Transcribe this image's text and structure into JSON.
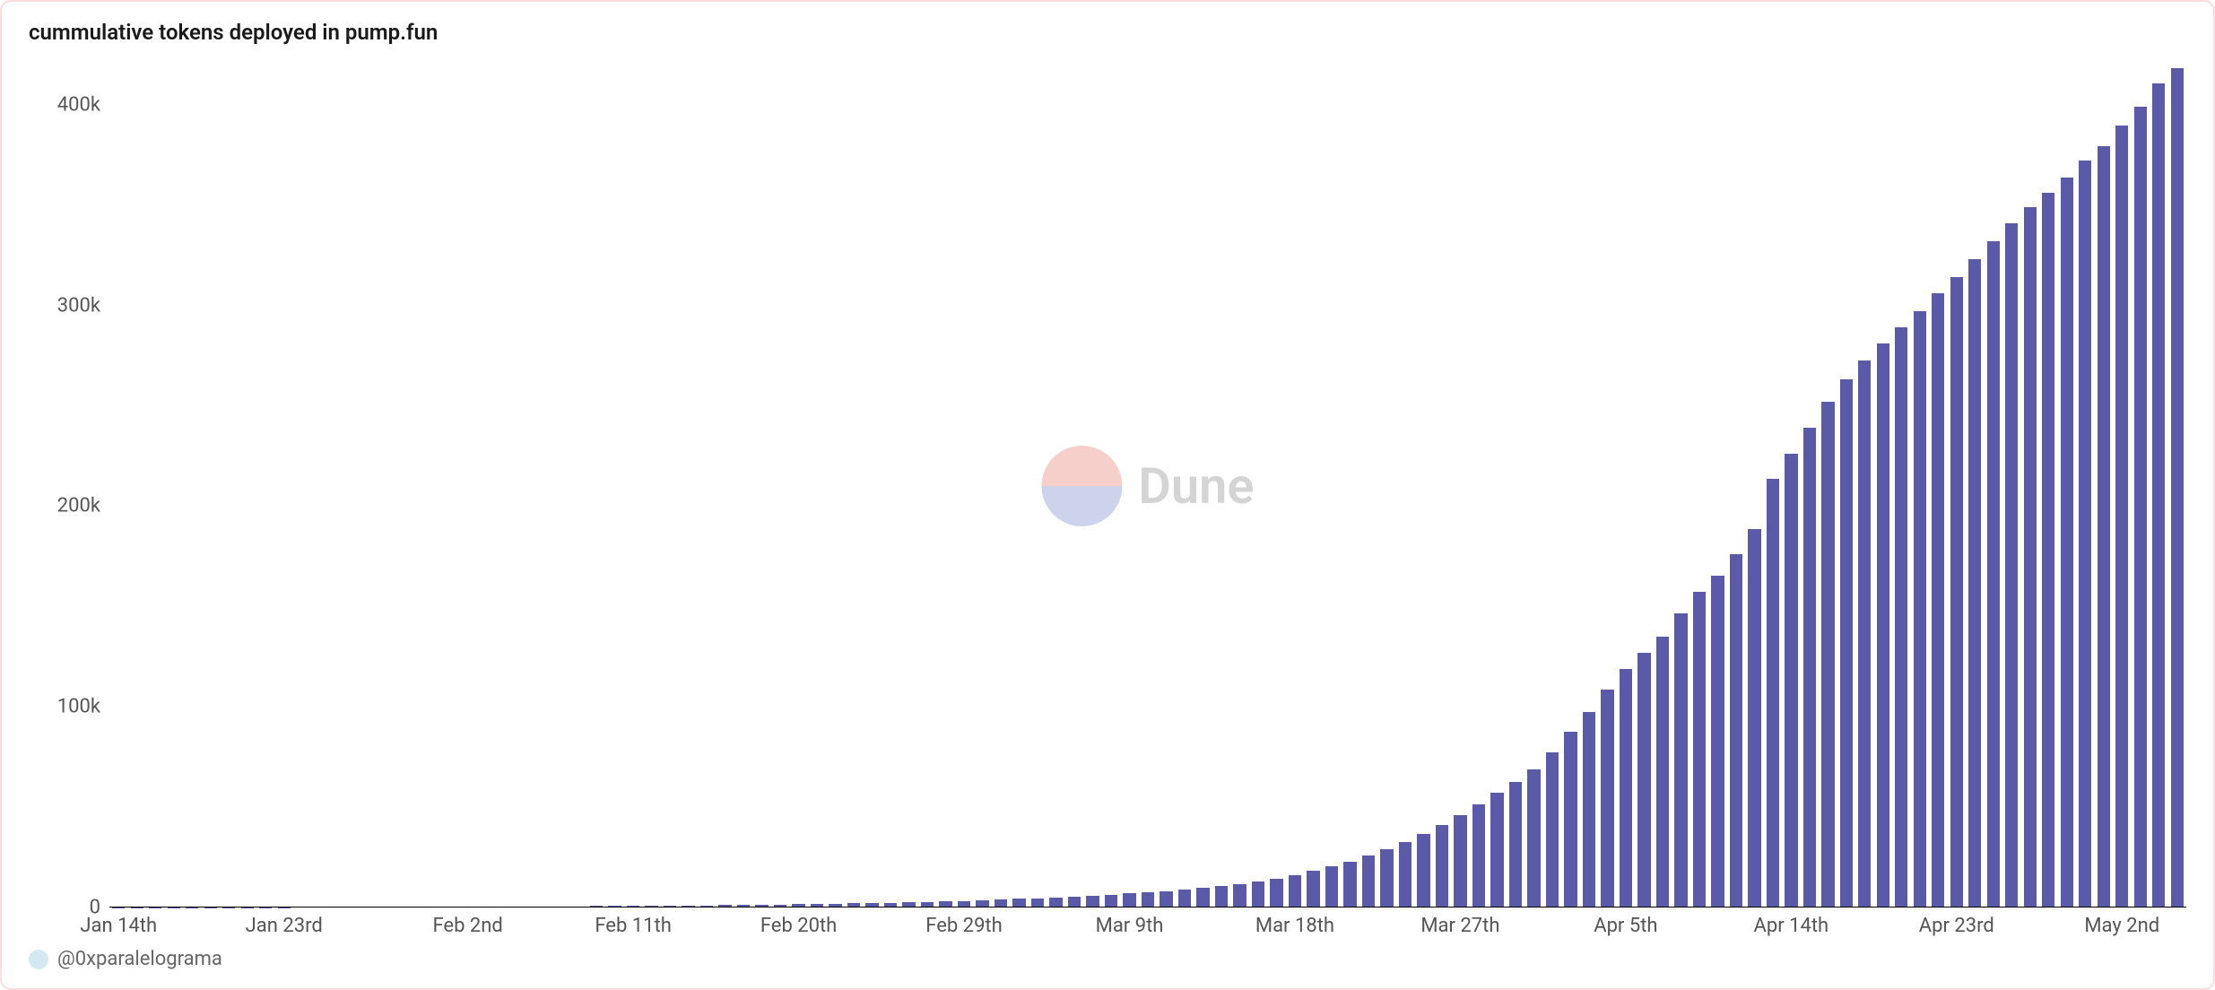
{
  "chart": {
    "type": "bar",
    "title": "cummulative tokens deployed in pump.fun",
    "title_fontsize": 24,
    "title_color": "#1a1a1a",
    "background_color": "#ffffff",
    "border_color": "#fcdcdc",
    "bar_color": "#5a5aa8",
    "bar_width_ratio": 0.7,
    "axis_label_fontsize": 22,
    "axis_label_color": "#555555",
    "baseline_color": "#000000",
    "ylim": [
      0,
      420000
    ],
    "y_ticks": [
      {
        "value": 0,
        "label": "0"
      },
      {
        "value": 100000,
        "label": "100k"
      },
      {
        "value": 200000,
        "label": "200k"
      },
      {
        "value": 300000,
        "label": "300k"
      },
      {
        "value": 400000,
        "label": "400k"
      }
    ],
    "x_ticks": [
      {
        "index": 0,
        "label": "Jan 14th"
      },
      {
        "index": 9,
        "label": "Jan 23rd"
      },
      {
        "index": 19,
        "label": "Feb 2nd"
      },
      {
        "index": 28,
        "label": "Feb 11th"
      },
      {
        "index": 37,
        "label": "Feb 20th"
      },
      {
        "index": 46,
        "label": "Feb 29th"
      },
      {
        "index": 55,
        "label": "Mar 9th"
      },
      {
        "index": 64,
        "label": "Mar 18th"
      },
      {
        "index": 73,
        "label": "Mar 27th"
      },
      {
        "index": 82,
        "label": "Apr 5th"
      },
      {
        "index": 91,
        "label": "Apr 14th"
      },
      {
        "index": 100,
        "label": "Apr 23rd"
      },
      {
        "index": 109,
        "label": "May 2nd"
      }
    ],
    "values": [
      50,
      60,
      80,
      100,
      120,
      140,
      160,
      180,
      200,
      220,
      240,
      260,
      280,
      300,
      320,
      340,
      360,
      380,
      400,
      420,
      450,
      480,
      520,
      560,
      600,
      650,
      700,
      750,
      800,
      860,
      920,
      1000,
      1080,
      1160,
      1260,
      1360,
      1480,
      1600,
      1740,
      1880,
      2040,
      2220,
      2420,
      2620,
      2840,
      3080,
      3340,
      3620,
      3920,
      4260,
      4620,
      5020,
      5450,
      5920,
      6420,
      6980,
      7590,
      8260,
      8990,
      9790,
      10650,
      11700,
      13000,
      14500,
      16300,
      18300,
      20500,
      23000,
      25800,
      29000,
      32500,
      36500,
      41000,
      46000,
      51500,
      57000,
      62500,
      69000,
      77500,
      87500,
      97500,
      108500,
      119000,
      127000,
      135000,
      146500,
      157500,
      165500,
      176000,
      188500,
      213500,
      226000,
      239000,
      252000,
      263000,
      272500,
      281000,
      289000,
      297000,
      306000,
      314000,
      323000,
      332000,
      341000,
      349000,
      356000,
      363500,
      372000,
      379500,
      389500,
      399000,
      410500,
      418000
    ]
  },
  "watermark": {
    "text": "Dune",
    "circle_top_color": "#f1b0a8",
    "circle_bottom_color": "#aeb6e0",
    "text_color": "#b8b8b8",
    "opacity": 0.6
  },
  "attribution": {
    "handle": "@0xparalelograma",
    "dot_color": "#d4e8f0"
  }
}
